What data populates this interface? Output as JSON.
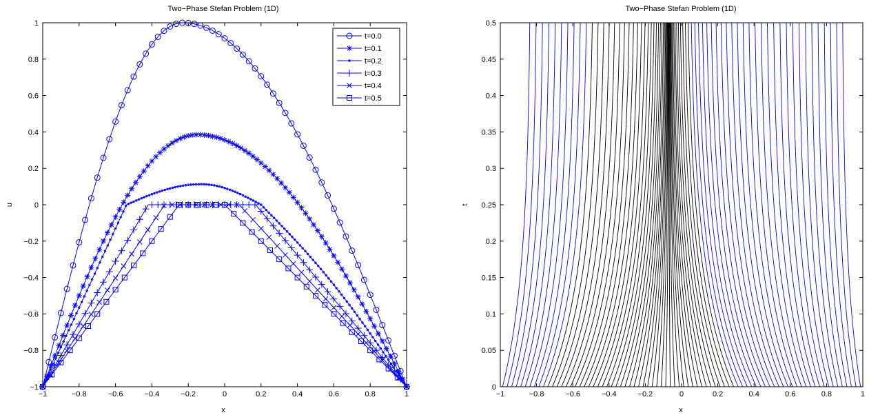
{
  "chart_data": [
    {
      "type": "line",
      "title": "Two−Phase Stefan Problem (1D)",
      "xlabel": "x",
      "ylabel": "u",
      "xlim": [
        -1,
        1
      ],
      "ylim": [
        -1,
        1
      ],
      "xticks": [
        "−1",
        "−0.8",
        "−0.6",
        "−0.4",
        "−0.2",
        "0",
        "0.2",
        "0.4",
        "0.6",
        "0.8",
        "1"
      ],
      "yticks": [
        "−1",
        "−0.8",
        "−0.6",
        "−0.4",
        "−0.2",
        "0",
        "0.2",
        "0.4",
        "0.6",
        "0.8",
        "1"
      ],
      "legend_position": "top-right",
      "series_color": "#0000ff",
      "series": [
        {
          "name": "t=0.0",
          "marker": "circle",
          "x": [
            -1,
            -0.23,
            1
          ],
          "y": [
            -1,
            1.0,
            -1
          ]
        },
        {
          "name": "t=0.1",
          "marker": "asterisk",
          "x": [
            -1,
            -0.15,
            1
          ],
          "y": [
            -1,
            0.385,
            -1
          ]
        },
        {
          "name": "t=0.2",
          "marker": "dot",
          "x": [
            -1,
            -0.54,
            -0.13,
            1
          ],
          "y": [
            -1,
            0.0,
            0.113,
            -1
          ]
        },
        {
          "name": "t=0.3",
          "marker": "plus",
          "x": [
            -1,
            -0.42,
            0.17,
            1
          ],
          "y": [
            -1,
            0.0,
            0.0,
            -1
          ]
        },
        {
          "name": "t=0.4",
          "marker": "x",
          "x": [
            -1,
            -0.33,
            0.08,
            1
          ],
          "y": [
            -1,
            0.0,
            0.0,
            -1
          ]
        },
        {
          "name": "t=0.5",
          "marker": "square",
          "x": [
            -1,
            -0.25,
            0.0,
            1
          ],
          "y": [
            -1,
            0.0,
            0.0,
            -1
          ]
        }
      ]
    },
    {
      "type": "line",
      "title": "Two−Phase Stefan Problem (1D)",
      "xlabel": "x",
      "ylabel": "t",
      "xlim": [
        -1,
        1
      ],
      "ylim": [
        0,
        0.5
      ],
      "xticks": [
        "−1",
        "−0.8",
        "−0.6",
        "−0.4",
        "−0.2",
        "0",
        "0.2",
        "0.4",
        "0.6",
        "0.8",
        "1"
      ],
      "yticks": [
        "0",
        "0.05",
        "0.1",
        "0.15",
        "0.2",
        "0.25",
        "0.3",
        "0.35",
        "0.4",
        "0.45",
        "0.5"
      ],
      "description": "characteristic trajectories x(t), 80 curves, blue lines for the liquid region, black lines for the region between the two interfaces",
      "trajectory_count": 80,
      "colors": {
        "outer": "#0000ff",
        "inner": "#000000"
      }
    }
  ]
}
